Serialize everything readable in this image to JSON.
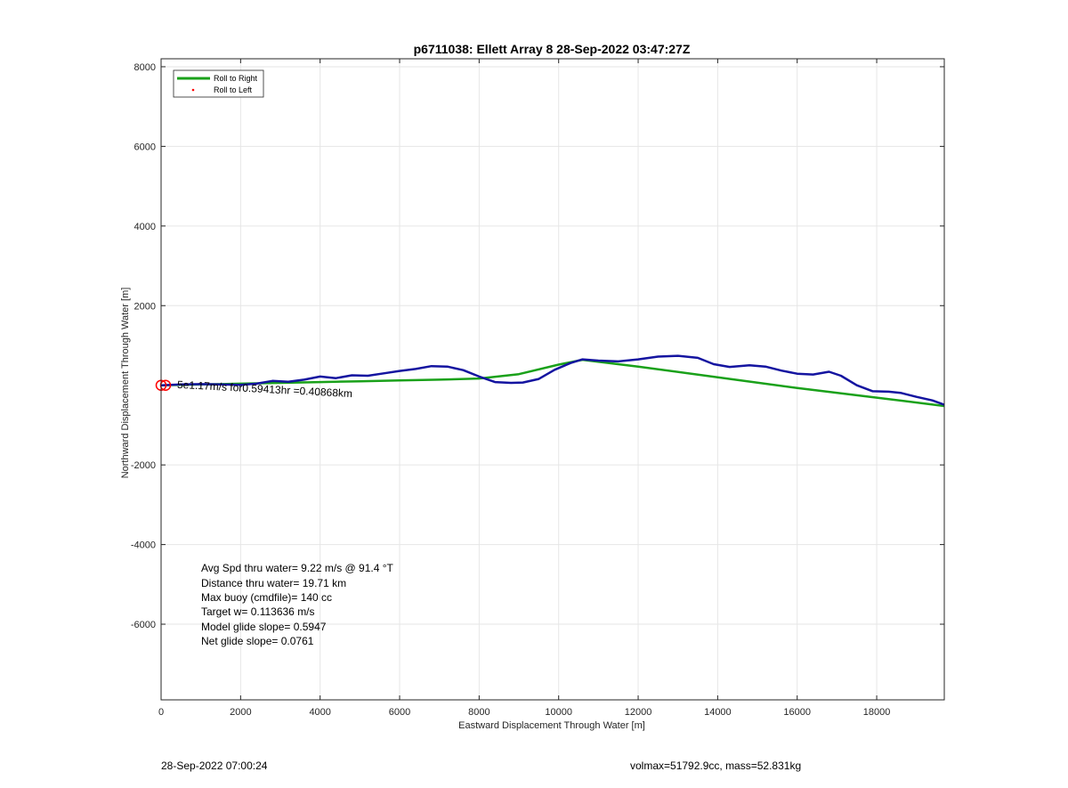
{
  "chart_data": {
    "type": "line",
    "title": "p6711038: Ellett Array 8 28-Sep-2022 03:47:27Z",
    "xlabel": "Eastward Displacement Through Water [m]",
    "ylabel": "Northward Displacement Through Water [m]",
    "xlim": [
      0,
      19700
    ],
    "ylim": [
      -7900,
      8200
    ],
    "xticks": [
      0,
      2000,
      4000,
      6000,
      8000,
      10000,
      12000,
      14000,
      16000,
      18000
    ],
    "yticks": [
      8000,
      6000,
      4000,
      2000,
      -2000,
      -4000,
      -6000
    ],
    "xtick_labels": [
      "0",
      "2000",
      "4000",
      "6000",
      "8000",
      "10000",
      "12000",
      "14000",
      "16000",
      "18000"
    ],
    "ytick_labels": [
      "8000",
      "6000",
      "4000",
      "2000",
      "-2000",
      "-4000",
      "-6000"
    ],
    "grid": true,
    "legend": {
      "location": "top-left",
      "entries": [
        {
          "label": "Roll to Right",
          "color": "#1aa11a",
          "style": "line"
        },
        {
          "label": "Roll to Left",
          "color": "#ff0000",
          "style": "dot"
        }
      ]
    },
    "series": [
      {
        "name": "Roll to Right",
        "color": "#1aa11a",
        "x": [
          0,
          1000,
          2000,
          3000,
          4000,
          5000,
          6000,
          7000,
          8000,
          9000,
          10000,
          10600,
          12000,
          14000,
          16000,
          18000,
          19700
        ],
        "y": [
          0,
          20,
          40,
          60,
          80,
          100,
          120,
          140,
          170,
          280,
          520,
          640,
          470,
          200,
          -70,
          -310,
          -520
        ]
      },
      {
        "name": "",
        "color": "#1414a0",
        "x": [
          0,
          500,
          1000,
          1500,
          2000,
          2400,
          2800,
          3200,
          3600,
          4000,
          4400,
          4800,
          5200,
          5600,
          6000,
          6400,
          6800,
          7200,
          7600,
          8000,
          8400,
          8800,
          9100,
          9500,
          9900,
          10300,
          10600,
          11000,
          11500,
          12000,
          12500,
          13000,
          13500,
          13900,
          14300,
          14800,
          15200,
          15600,
          16000,
          16400,
          16800,
          17100,
          17500,
          17900,
          18300,
          18600,
          19000,
          19400,
          19700
        ],
        "y": [
          0,
          20,
          30,
          20,
          10,
          40,
          110,
          90,
          140,
          220,
          180,
          250,
          240,
          300,
          360,
          410,
          480,
          470,
          380,
          220,
          80,
          60,
          70,
          160,
          390,
          560,
          650,
          620,
          600,
          650,
          720,
          740,
          690,
          530,
          460,
          500,
          470,
          370,
          290,
          270,
          340,
          240,
          0,
          -150,
          -160,
          -190,
          -290,
          -380,
          -490
        ]
      }
    ],
    "start_marker": {
      "x": 0,
      "y": 0,
      "color": "#ff0000"
    },
    "annotation": {
      "x": 400,
      "y": -70,
      "text": "5e1.17m/s for0.59413hr =0.40868km",
      "rotation": 3
    }
  },
  "stats": [
    "Avg Spd thru water=  9.22 m/s @  91.4 °T",
    "Distance thru water= 19.71 km",
    "Max buoy (cmdfile)= 140 cc",
    "Target w= 0.113636 m/s",
    "Model glide slope= 0.5947",
    "Net glide slope= 0.0761"
  ],
  "footer": {
    "left": "28-Sep-2022 07:00:24",
    "right": "volmax=51792.9cc, mass=52.831kg"
  }
}
